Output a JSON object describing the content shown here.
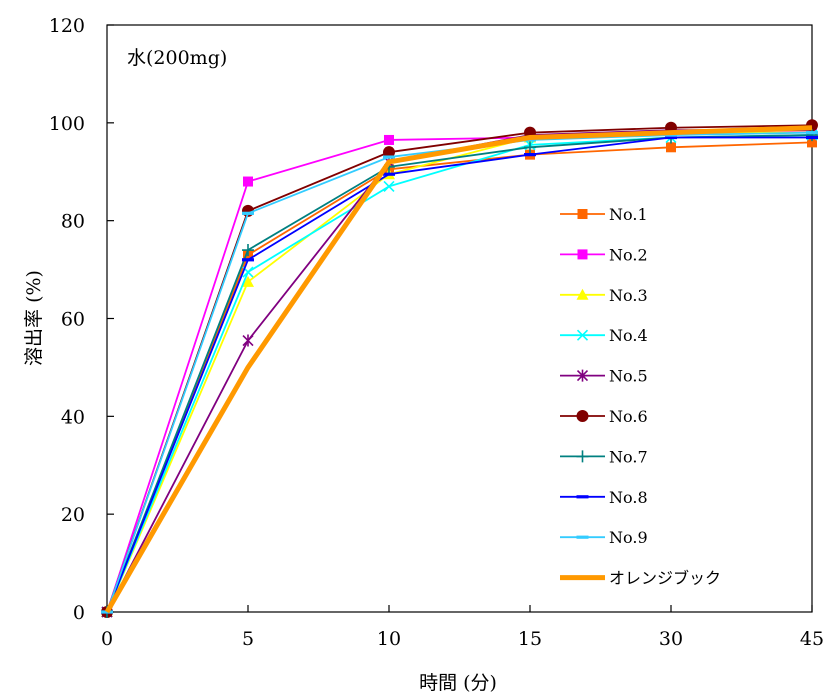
{
  "chart_data": {
    "type": "line",
    "annotation": "水(200mg)",
    "xlabel": "時間 (分)",
    "ylabel": "溶出率 (%)",
    "categories": [
      "0",
      "5",
      "10",
      "15",
      "30",
      "45"
    ],
    "ylim": [
      0,
      120
    ],
    "yticks": [
      0,
      20,
      40,
      60,
      80,
      100,
      120
    ],
    "grid": false,
    "legend_position": "right-middle",
    "series": [
      {
        "name": "No.1",
        "color": "#ff6600",
        "marker": "square",
        "values": [
          0,
          73,
          90.5,
          93.5,
          95,
          96
        ]
      },
      {
        "name": "No.2",
        "color": "#ff00ff",
        "marker": "square",
        "values": [
          0,
          88,
          96.5,
          97,
          98,
          98.5
        ]
      },
      {
        "name": "No.3",
        "color": "#ffff00",
        "marker": "triangle",
        "values": [
          0,
          67.5,
          89.5,
          97,
          98,
          98
        ]
      },
      {
        "name": "No.4",
        "color": "#00ffff",
        "marker": "x",
        "values": [
          0,
          69.5,
          87,
          95.5,
          97,
          97.5
        ]
      },
      {
        "name": "No.5",
        "color": "#800080",
        "marker": "asterisk",
        "values": [
          0,
          55.5,
          92,
          97.5,
          98.5,
          98.5
        ]
      },
      {
        "name": "No.6",
        "color": "#800000",
        "marker": "circle",
        "values": [
          0,
          82,
          94,
          98,
          99,
          99.5
        ]
      },
      {
        "name": "No.7",
        "color": "#008080",
        "marker": "plus",
        "values": [
          0,
          74,
          91,
          95,
          97,
          97.5
        ]
      },
      {
        "name": "No.8",
        "color": "#0000ff",
        "marker": "dash",
        "values": [
          0,
          72,
          89.5,
          93.5,
          97,
          97
        ]
      },
      {
        "name": "No.9",
        "color": "#33ccff",
        "marker": "dash",
        "values": [
          0,
          81.5,
          93,
          96.5,
          97.5,
          98
        ]
      },
      {
        "name": "オレンジブック",
        "color": "#ff9900",
        "marker": "none",
        "thick": true,
        "values": [
          0,
          50,
          92,
          97,
          98,
          99
        ]
      }
    ]
  }
}
